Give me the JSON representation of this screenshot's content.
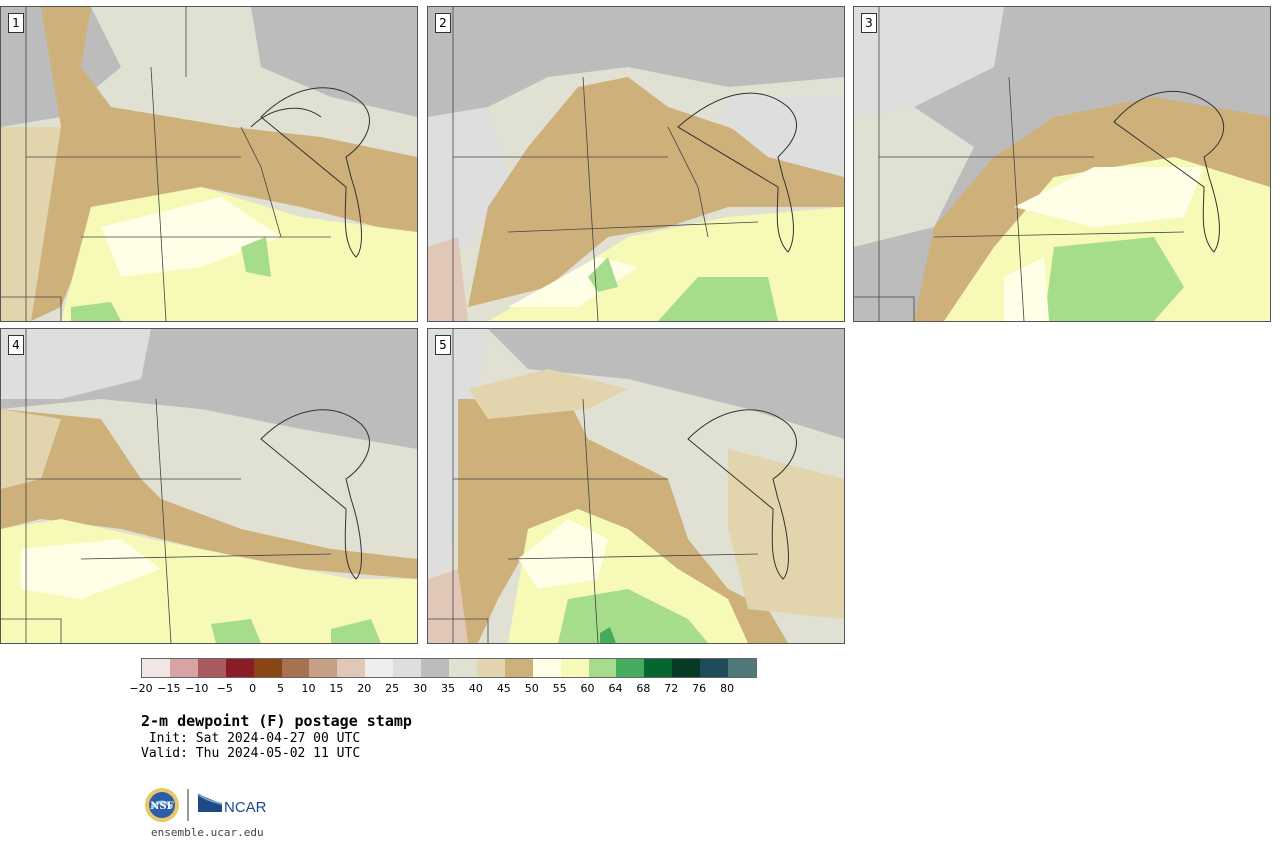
{
  "panels": [
    {
      "label": "1"
    },
    {
      "label": "2"
    },
    {
      "label": "3"
    },
    {
      "label": "4"
    },
    {
      "label": "5"
    }
  ],
  "colorbar": {
    "ticks": [
      "−20",
      "−15",
      "−10",
      "−5",
      "0",
      "5",
      "10",
      "15",
      "20",
      "25",
      "30",
      "35",
      "40",
      "45",
      "50",
      "55",
      "60",
      "64",
      "68",
      "72",
      "76",
      "80"
    ],
    "colors": [
      "#f2e6e6",
      "#d9a3a6",
      "#a95a5f",
      "#8b1b25",
      "#8a4514",
      "#a87252",
      "#c69f84",
      "#e1c7b7",
      "#eeeeee",
      "#dedede",
      "#bcbcbc",
      "#e0e0d3",
      "#e2d4ad",
      "#cdb07a",
      "#fffee6",
      "#f6fab6",
      "#a5dd8c",
      "#45ac5e",
      "#05662f",
      "#073a25",
      "#1f4c5b",
      "#507979"
    ]
  },
  "title": "2-m dewpoint (F) postage stamp",
  "init": " Init: Sat 2024-04-27 00 UTC",
  "valid": "Valid: Thu 2024-05-02 11 UTC",
  "logos": {
    "nsf": "NSF",
    "ncar": "NCAR"
  },
  "site": "ensemble.ucar.edu"
}
